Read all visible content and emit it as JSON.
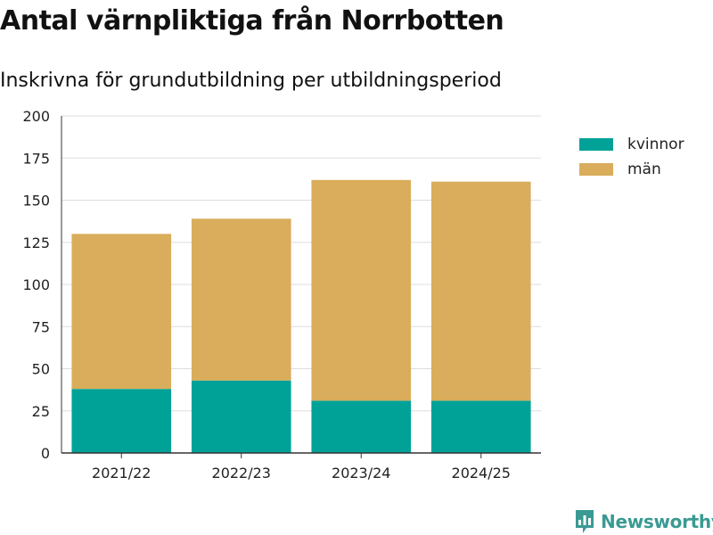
{
  "chart_data": {
    "type": "bar",
    "stacked": true,
    "title": "Antal värnpliktiga från Norrbotten",
    "subtitle": "Inskrivna för grundutbildning per utbildningsperiod",
    "xlabel": "",
    "ylabel": "",
    "categories": [
      "2021/22",
      "2022/23",
      "2023/24",
      "2024/25"
    ],
    "series": [
      {
        "name": "kvinnor",
        "color": "#00a298",
        "values": [
          38,
          43,
          31,
          31
        ]
      },
      {
        "name": "män",
        "color": "#d9ad5b",
        "values": [
          92,
          96,
          131,
          130
        ]
      }
    ],
    "ylim": [
      0,
      200
    ],
    "yticks": [
      0,
      25,
      50,
      75,
      100,
      125,
      150,
      175,
      200
    ],
    "grid": true,
    "legend_position": "top-right"
  },
  "brand": {
    "name": "Newsworthy",
    "icon": "newsworthy-logo-icon",
    "color": "#3a9a93"
  }
}
